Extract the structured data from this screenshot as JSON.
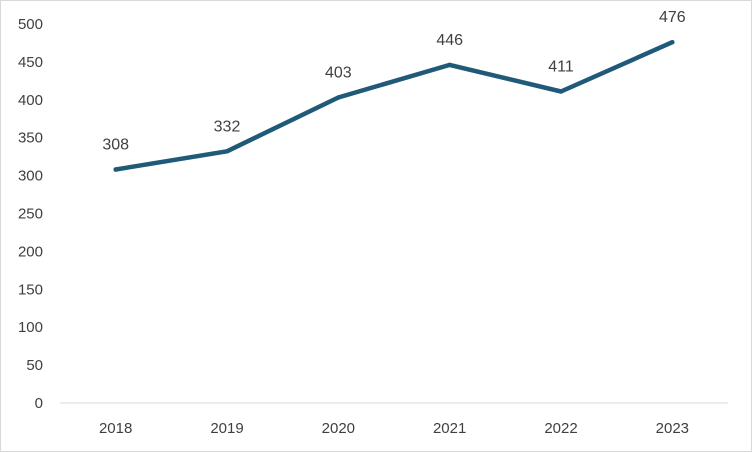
{
  "chart_data": {
    "type": "line",
    "title": "",
    "xlabel": "",
    "ylabel": "",
    "categories": [
      "2018",
      "2019",
      "2020",
      "2021",
      "2022",
      "2023"
    ],
    "series": [
      {
        "values": [
          308,
          332,
          403,
          446,
          411,
          476
        ],
        "color": "#1f5a78",
        "data_labels": [
          "308",
          "332",
          "403",
          "446",
          "411",
          "476"
        ]
      }
    ],
    "ylim": [
      0,
      500
    ],
    "yticks": [
      "0",
      "50",
      "100",
      "150",
      "200",
      "250",
      "300",
      "350",
      "400",
      "450",
      "500"
    ],
    "ytick_values": [
      0,
      50,
      100,
      150,
      200,
      250,
      300,
      350,
      400,
      450,
      500
    ],
    "grid": false,
    "legend": "none",
    "colors": {
      "line": "#1f5a78",
      "text": "#404040",
      "axis": "#d9d9d9",
      "border": "#d9d9d9"
    }
  }
}
